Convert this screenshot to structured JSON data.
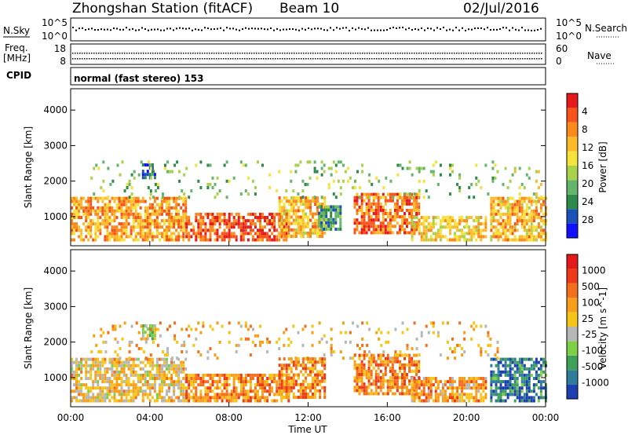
{
  "header": {
    "station": "Zhongshan Station (fitACF)",
    "beam": "Beam 10",
    "date": "02/Jul/2016"
  },
  "strips": {
    "nsky_label": "N.Sky",
    "nsky_ticks": [
      "10^5",
      "10^0"
    ],
    "nsearch_label": "N.Search",
    "nsearch_ticks": [
      "10^5",
      "10^0"
    ],
    "freq_label_1": "Freq.",
    "freq_label_2": "[MHz]",
    "freq_ticks": [
      "18",
      "8"
    ],
    "nave_label": "Nave",
    "nave_ticks": [
      "60",
      "0"
    ],
    "cpid_label": "CPID",
    "cpid_text": "normal (fast stereo) 153"
  },
  "chart_data": [
    {
      "type": "heatmap",
      "title": "",
      "xlabel": "Time UT",
      "ylabel": "Slant Range [km]",
      "x_ticks": [
        "00:00",
        "04:00",
        "08:00",
        "12:00",
        "16:00",
        "20:00",
        "00:00"
      ],
      "xlim_hours": [
        0,
        24
      ],
      "y_ticks": [
        1000,
        2000,
        3000,
        4000
      ],
      "ylim": [
        180,
        4600
      ],
      "colorbar": {
        "label": "Power [dB]",
        "ticks": [
          "4",
          "8",
          "12",
          "16",
          "20",
          "24",
          "28"
        ],
        "colors": [
          "#1010ff",
          "#1a52b8",
          "#2e8a4a",
          "#62b56a",
          "#a8d24c",
          "#f6e33a",
          "#fdbb2c",
          "#fb8a1c",
          "#f7541a",
          "#e41a1c"
        ]
      },
      "scatter_regions": [
        {
          "t0": 0.0,
          "t1": 5.8,
          "r0": 300,
          "r1": 1500,
          "level": 0.7
        },
        {
          "t0": 5.8,
          "t1": 11.0,
          "r0": 300,
          "r1": 1100,
          "level": 0.85
        },
        {
          "t0": 10.5,
          "t1": 12.8,
          "r0": 400,
          "r1": 1500,
          "level": 0.65
        },
        {
          "t0": 12.5,
          "t1": 13.6,
          "r0": 600,
          "r1": 1300,
          "level": 0.3
        },
        {
          "t0": 14.3,
          "t1": 17.6,
          "r0": 500,
          "r1": 1600,
          "level": 0.8
        },
        {
          "t0": 17.2,
          "t1": 21.0,
          "r0": 300,
          "r1": 1000,
          "level": 0.6
        },
        {
          "t0": 21.2,
          "t1": 24.0,
          "r0": 300,
          "r1": 1500,
          "level": 0.65
        },
        {
          "t0": 3.6,
          "t1": 4.3,
          "r0": 2050,
          "r1": 2450,
          "level": 0.15
        },
        {
          "t0": 1.0,
          "t1": 21.6,
          "r0": 1500,
          "r1": 2500,
          "level": 0.4,
          "sparse": true
        },
        {
          "t0": 21.8,
          "t1": 23.8,
          "r0": 1500,
          "r1": 2400,
          "level": 0.5,
          "sparse": true
        }
      ]
    },
    {
      "type": "heatmap",
      "title": "",
      "xlabel": "Time UT",
      "ylabel": "Slant Range [km]",
      "x_ticks": [
        "00:00",
        "04:00",
        "08:00",
        "12:00",
        "16:00",
        "20:00",
        "00:00"
      ],
      "xlim_hours": [
        0,
        24
      ],
      "y_ticks": [
        1000,
        2000,
        3000,
        4000
      ],
      "ylim": [
        180,
        4600
      ],
      "colorbar": {
        "label": "Velocity [m s^-1]",
        "ticks": [
          "1000",
          "500",
          "100",
          "25",
          "-25",
          "-100",
          "-500",
          "-1000"
        ],
        "colors": [
          "#1d3fb0",
          "#2f7d9a",
          "#3fa05a",
          "#7ed048",
          "#b7b7b7",
          "#f5c519",
          "#f79f1b",
          "#f36f1c",
          "#ec3a1b",
          "#e31a1c"
        ]
      },
      "scatter_regions": [
        {
          "t0": 0.0,
          "t1": 5.8,
          "r0": 300,
          "r1": 1500,
          "level": 0.55
        },
        {
          "t0": 5.8,
          "t1": 11.0,
          "r0": 300,
          "r1": 1100,
          "level": 0.7
        },
        {
          "t0": 10.5,
          "t1": 12.8,
          "r0": 400,
          "r1": 1500,
          "level": 0.7
        },
        {
          "t0": 14.3,
          "t1": 17.6,
          "r0": 500,
          "r1": 1600,
          "level": 0.72
        },
        {
          "t0": 17.2,
          "t1": 21.0,
          "r0": 300,
          "r1": 1000,
          "level": 0.65
        },
        {
          "t0": 21.2,
          "t1": 24.0,
          "r0": 300,
          "r1": 1500,
          "level": 0.15
        },
        {
          "t0": 3.6,
          "t1": 4.3,
          "r0": 2050,
          "r1": 2450,
          "level": 0.42
        },
        {
          "t0": 1.0,
          "t1": 21.6,
          "r0": 1500,
          "r1": 2500,
          "level": 0.6,
          "sparse": true
        }
      ]
    }
  ]
}
